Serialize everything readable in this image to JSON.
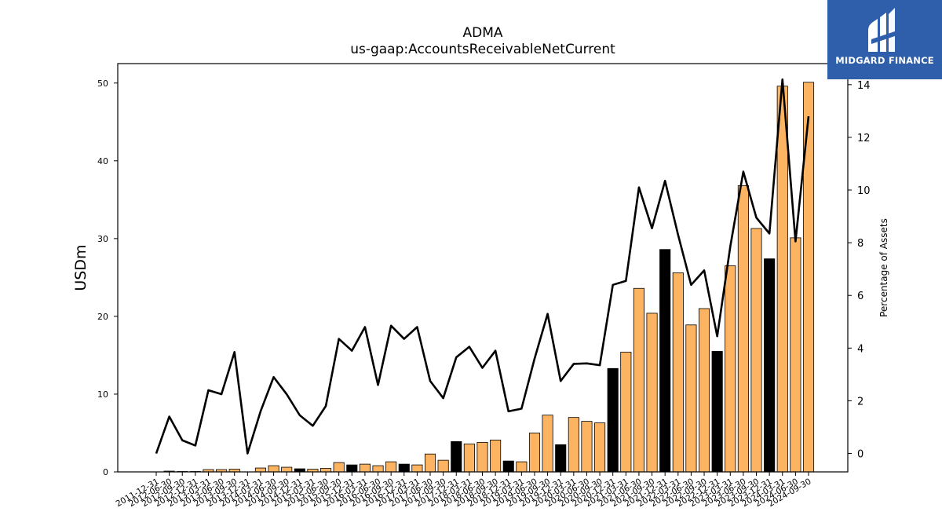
{
  "chart_data": {
    "type": "bar+line",
    "title": "ADMA",
    "subtitle": "us-gaap:AccountsReceivableNetCurrent",
    "ylabel": "USDm",
    "ylabel_right": "Percentage of Assets",
    "ylim": [
      0,
      52.5
    ],
    "ylim_right": [
      -0.7,
      14.8
    ],
    "yticks": [
      0,
      10,
      20,
      30,
      40,
      50
    ],
    "yticks_right": [
      0,
      2,
      4,
      6,
      8,
      10,
      12,
      14
    ],
    "categories": [
      "2011-12-31",
      "2012-06-30",
      "2012-09-30",
      "2012-12-31",
      "2013-03-31",
      "2013-06-30",
      "2013-09-30",
      "2013-12-31",
      "2014-03-31",
      "2014-06-30",
      "2014-09-30",
      "2014-12-31",
      "2015-03-31",
      "2015-06-30",
      "2015-09-30",
      "2015-12-31",
      "2016-03-31",
      "2016-06-30",
      "2016-09-30",
      "2016-12-31",
      "2017-03-31",
      "2017-06-30",
      "2017-09-30",
      "2017-12-31",
      "2018-03-31",
      "2018-06-30",
      "2018-09-30",
      "2018-12-31",
      "2019-03-31",
      "2019-06-30",
      "2019-09-30",
      "2019-12-31",
      "2020-03-31",
      "2020-06-30",
      "2020-09-30",
      "2020-12-31",
      "2021-03-31",
      "2021-06-30",
      "2021-09-30",
      "2021-12-31",
      "2022-03-31",
      "2022-06-30",
      "2022-09-30",
      "2022-12-31",
      "2023-03-31",
      "2023-06-30",
      "2023-09-30",
      "2023-12-31",
      "2024-03-31",
      "2024-06-30",
      "2024-09-30"
    ],
    "series": [
      {
        "kind": "bar",
        "values": [
          0.0,
          0.1,
          0.05,
          0.05,
          0.3,
          0.3,
          0.35,
          0.0,
          0.5,
          0.8,
          0.6,
          0.4,
          0.35,
          0.45,
          1.2,
          0.9,
          1.0,
          0.8,
          1.3,
          1.0,
          0.9,
          2.3,
          1.5,
          3.9,
          3.6,
          3.8,
          4.1,
          1.4,
          1.3,
          5.0,
          7.3,
          3.5,
          7.0,
          6.5,
          6.3,
          13.3,
          15.4,
          23.6,
          20.4,
          28.6,
          25.6,
          18.9,
          21.0,
          15.5,
          26.5,
          36.8,
          31.3,
          27.4,
          49.6,
          30.1,
          50.1
        ],
        "year_end": [
          false,
          false,
          false,
          true,
          false,
          false,
          false,
          true,
          false,
          false,
          false,
          true,
          false,
          false,
          false,
          true,
          false,
          false,
          false,
          true,
          false,
          false,
          false,
          true,
          false,
          false,
          false,
          true,
          false,
          false,
          false,
          true,
          false,
          false,
          false,
          true,
          false,
          false,
          false,
          true,
          false,
          false,
          false,
          true,
          false,
          false,
          false,
          true,
          false,
          false,
          false
        ],
        "color": "#fdb462",
        "color_year_end": "#000000"
      },
      {
        "kind": "line",
        "axis": "right",
        "values": [
          0.0,
          1.4,
          0.5,
          0.3,
          2.4,
          2.25,
          3.85,
          0.0,
          1.6,
          2.9,
          2.25,
          1.45,
          1.05,
          1.8,
          4.35,
          3.9,
          4.8,
          2.6,
          4.85,
          4.35,
          4.8,
          2.75,
          2.1,
          3.65,
          4.05,
          3.25,
          3.9,
          1.6,
          1.7,
          3.6,
          5.3,
          2.75,
          3.4,
          3.42,
          3.35,
          6.4,
          6.55,
          10.1,
          8.55,
          10.35,
          8.3,
          6.4,
          6.95,
          4.45,
          7.85,
          10.7,
          8.95,
          8.35,
          14.2,
          8.05,
          12.8
        ],
        "color": "#000000"
      }
    ],
    "grid": false,
    "legend": "none"
  },
  "logo": {
    "text": "MIDGARD FINANCE",
    "color": "#2f5faa"
  }
}
